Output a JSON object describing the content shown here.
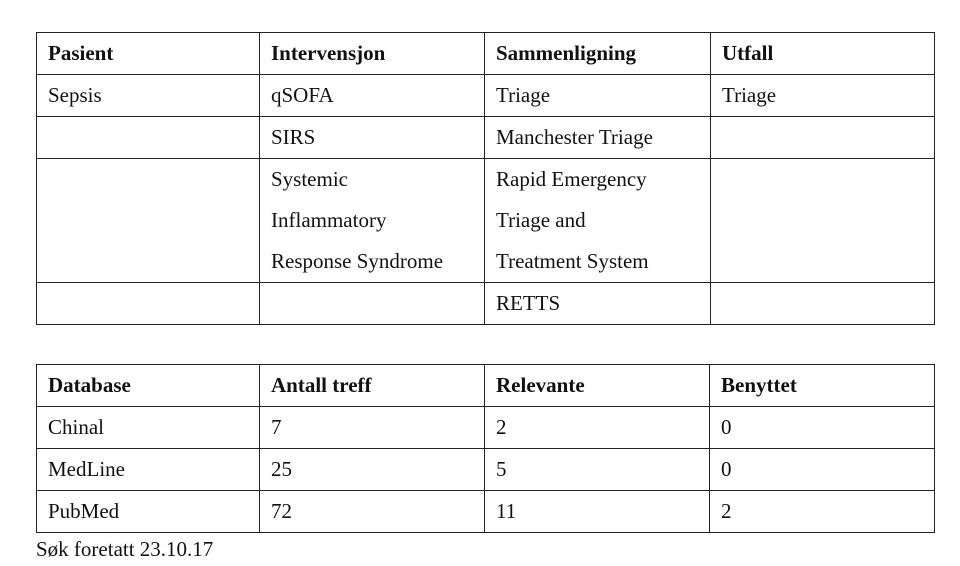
{
  "pico_table": {
    "header": [
      "Pasient",
      "Intervensjon",
      "Sammenligning",
      "Utfall"
    ],
    "rows": [
      [
        "Sepsis",
        "qSOFA",
        "Triage",
        "Triage"
      ],
      [
        null,
        "SIRS",
        "Manchester Triage",
        null
      ],
      [
        null,
        [
          "Systemic",
          "Inflammatory",
          "Response Syndrome"
        ],
        [
          "Rapid Emergency",
          "Triage and",
          "Treatment System"
        ],
        null
      ],
      [
        null,
        null,
        "RETTS",
        null
      ]
    ]
  },
  "search_table": {
    "header": [
      "Database",
      "Antall treff",
      "Relevante",
      "Benyttet"
    ],
    "rows": [
      [
        "Chinal",
        7,
        2,
        0
      ],
      [
        "MedLine",
        25,
        5,
        0
      ],
      [
        "PubMed",
        72,
        11,
        2
      ]
    ]
  },
  "footer": "Søk foretatt 23.10.17"
}
